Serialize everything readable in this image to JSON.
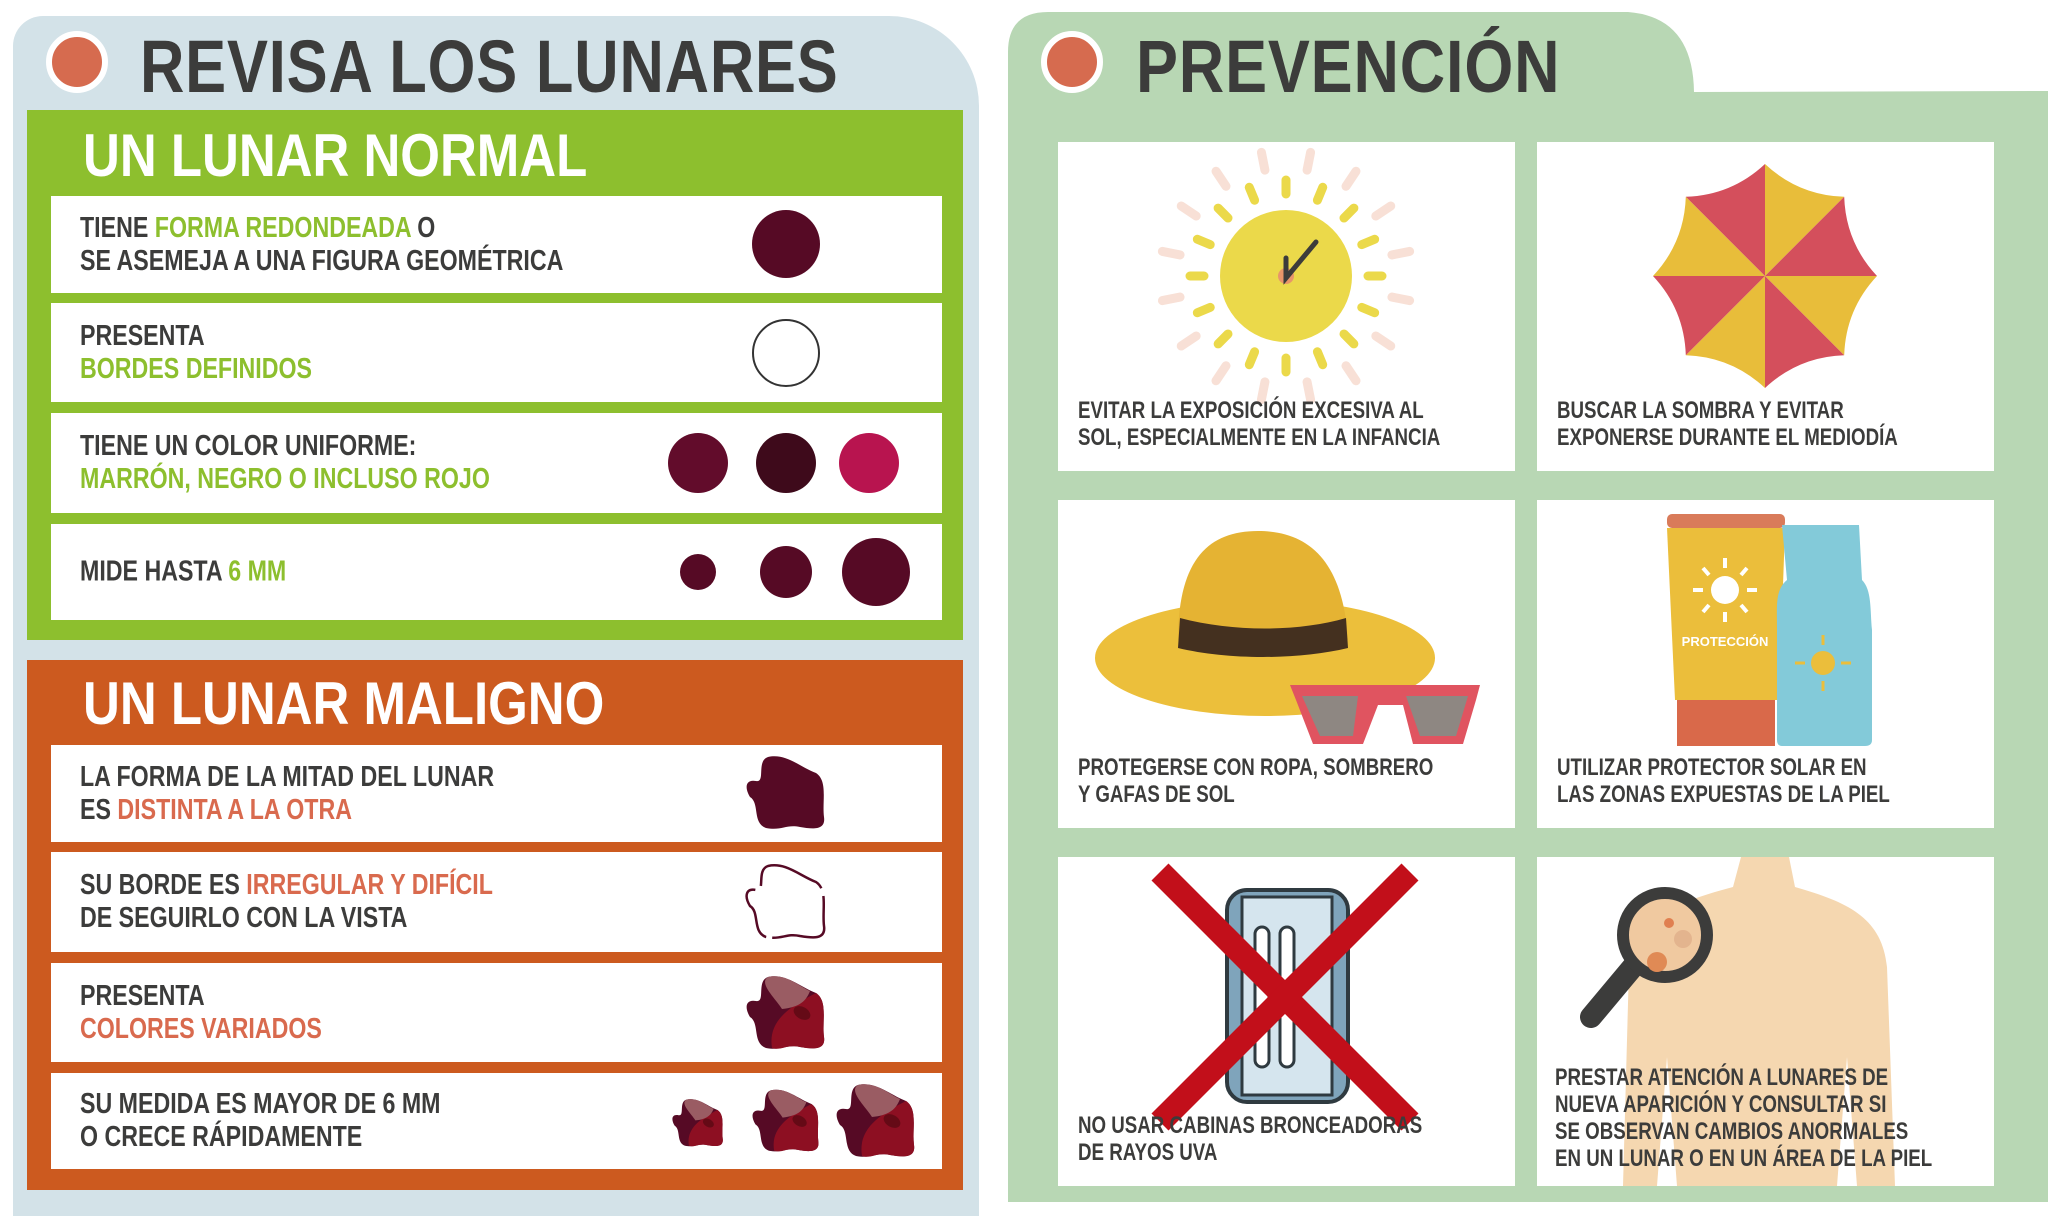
{
  "left": {
    "title": "REVISA LOS LUNARES",
    "normal": {
      "heading": "UN LUNAR NORMAL",
      "color": "#8dbf2e",
      "rows": [
        {
          "lines": [
            [
              {
                "t": "TIENE "
              },
              {
                "t": "FORMA REDONDEADA",
                "a": true
              },
              {
                "t": " O"
              }
            ],
            [
              {
                "t": "SE ASEMEJA A UNA FIGURA GEOMÉTRICA"
              }
            ]
          ],
          "icon": "round-mole-icon"
        },
        {
          "lines": [
            [
              {
                "t": "PRESENTA"
              }
            ],
            [
              {
                "t": "BORDES DEFINIDOS",
                "a": true
              }
            ]
          ],
          "icon": "defined-border-icon"
        },
        {
          "lines": [
            [
              {
                "t": "TIENE UN COLOR UNIFORME:"
              }
            ],
            [
              {
                "t": "MARRÓN, NEGRO O INCLUSO ROJO",
                "a": true
              }
            ]
          ],
          "icon": "uniform-colors-icon",
          "colors": [
            "#620c2b",
            "#3e0a1b",
            "#b8144f"
          ]
        },
        {
          "lines": [
            [
              {
                "t": "MIDE HASTA "
              },
              {
                "t": "6 MM",
                "a": true
              }
            ]
          ],
          "icon": "sizes-icon"
        }
      ]
    },
    "maligno": {
      "heading": "UN LUNAR MALIGNO",
      "color": "#cc5a1f",
      "rows": [
        {
          "lines": [
            [
              {
                "t": "LA FORMA DE LA MITAD DEL LUNAR"
              }
            ],
            [
              {
                "t": "ES "
              },
              {
                "t": "DISTINTA A LA OTRA",
                "a": true
              }
            ]
          ],
          "icon": "asymmetric-mole-icon"
        },
        {
          "lines": [
            [
              {
                "t": "SU BORDE ES "
              },
              {
                "t": "IRREGULAR Y DIFÍCIL",
                "a": true
              }
            ],
            [
              {
                "t": "DE SEGUIRLO CON LA VISTA"
              }
            ]
          ],
          "icon": "irregular-border-icon"
        },
        {
          "lines": [
            [
              {
                "t": "PRESENTA"
              }
            ],
            [
              {
                "t": "COLORES VARIADOS",
                "a": true
              }
            ]
          ],
          "icon": "varied-colors-mole-icon"
        },
        {
          "lines": [
            [
              {
                "t": "SU MEDIDA ES MAYOR DE 6 MM"
              }
            ],
            [
              {
                "t": "O CRECE RÁPIDAMENTE"
              }
            ]
          ],
          "icon": "growing-mole-icon"
        }
      ]
    }
  },
  "right": {
    "title": "PREVENCIÓN",
    "cards": [
      {
        "lines": [
          "EVITAR LA EXPOSICIÓN EXCESIVA AL",
          "SOL, ESPECIALMENTE EN LA INFANCIA"
        ],
        "icon": "sun-clock-icon"
      },
      {
        "lines": [
          "BUSCAR LA SOMBRA Y EVITAR",
          "EXPONERSE DURANTE EL MEDIODÍA"
        ],
        "icon": "umbrella-icon"
      },
      {
        "lines": [
          "PROTEGERSE CON ROPA, SOMBRERO",
          "Y GAFAS DE SOL"
        ],
        "icon": "hat-sunglasses-icon"
      },
      {
        "lines": [
          "UTILIZAR PROTECTOR SOLAR EN",
          "LAS ZONAS EXPUESTAS DE LA PIEL"
        ],
        "icon": "sunscreen-icon",
        "label": "PROTECCIÓN"
      },
      {
        "lines": [
          "NO USAR CABINAS BRONCEADORAS",
          "DE RAYOS UVA"
        ],
        "icon": "no-tanning-bed-icon"
      },
      {
        "lines": [
          "PRESTAR ATENCIÓN A LUNARES DE",
          "NUEVA APARICIÓN Y CONSULTAR SI",
          "SE OBSERVAN CAMBIOS ANORMALES",
          "EN UN LUNAR O EN UN ÁREA DE LA PIEL"
        ],
        "icon": "magnifier-skin-icon"
      }
    ]
  },
  "colors": {
    "left_bg": "#d3e2e8",
    "right_bg": "#b8d7b4",
    "accent_dot": "#d66b4f",
    "green": "#8dbf2e",
    "orange": "#cc5a1f",
    "text": "#3c3c3b",
    "mole": "#560a25"
  }
}
